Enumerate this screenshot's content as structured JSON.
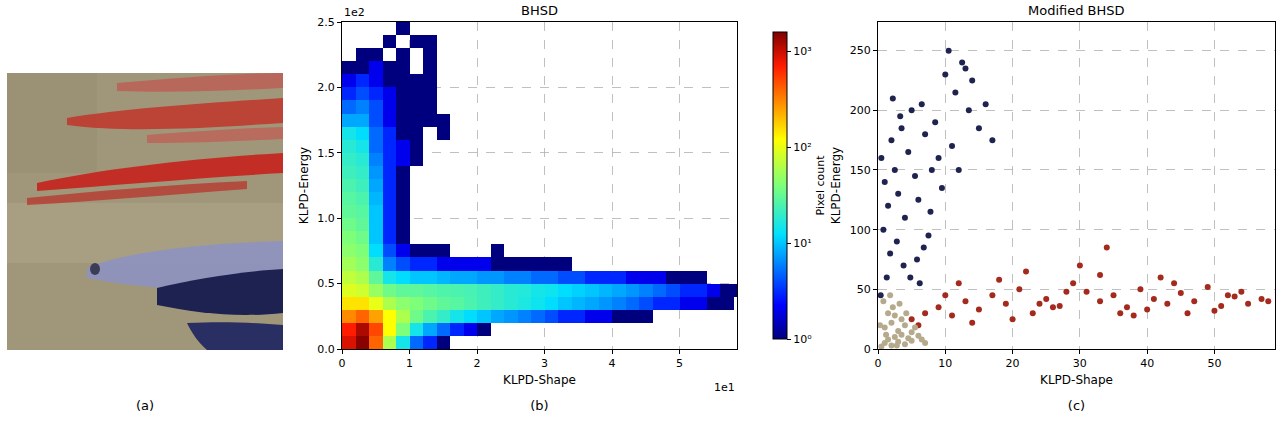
{
  "chart_data": [
    {
      "type": "image",
      "label": "(a)"
    },
    {
      "type": "heatmap",
      "label": "(b)",
      "title": "BHSD",
      "x_label": "KLPD-Shape",
      "y_label": "KLPD-Energy",
      "annotations": [
        {
          "text": "1e2",
          "axis": "y"
        },
        {
          "text": "1e1",
          "axis": "x"
        }
      ],
      "xlim": [
        0,
        5.85
      ],
      "ylim": [
        0,
        2.5
      ],
      "xticks": [
        0,
        1,
        2,
        3,
        4,
        5
      ],
      "yticks": [
        {
          "value": 0,
          "label": "0.0"
        },
        0.5,
        {
          "value": 1,
          "label": "1.0"
        },
        1.5,
        {
          "value": 2,
          "label": "2.0"
        },
        2.5
      ],
      "grid": true,
      "x_bins": [
        0,
        0.2,
        0.4,
        0.6,
        0.8,
        1.0,
        1.2,
        1.4,
        1.6,
        1.8,
        2.0,
        2.2,
        2.4,
        2.6,
        2.8,
        3.0,
        3.2,
        3.4,
        3.6,
        3.8,
        4.0,
        4.2,
        4.4,
        4.6,
        4.8,
        5.0,
        5.2,
        5.4,
        5.6,
        5.8,
        6.0
      ],
      "y_bins": [
        0,
        0.1,
        0.2,
        0.3,
        0.4,
        0.5,
        0.6,
        0.7,
        0.8,
        0.9,
        1.0,
        1.1,
        1.2,
        1.3,
        1.4,
        1.5,
        1.6,
        1.7,
        1.8,
        1.9,
        2.0,
        2.1,
        2.2,
        2.3,
        2.4,
        2.5
      ],
      "counts": [
        [
          900,
          1500,
          400,
          60,
          15,
          5,
          3,
          1,
          0,
          0,
          0,
          0,
          0,
          0,
          0,
          0,
          0,
          0,
          0,
          0,
          0,
          0,
          0,
          0,
          0,
          0,
          0,
          0,
          0,
          0
        ],
        [
          700,
          1200,
          500,
          120,
          40,
          15,
          8,
          5,
          3,
          2,
          1,
          0,
          0,
          0,
          0,
          0,
          0,
          0,
          0,
          0,
          0,
          0,
          0,
          0,
          0,
          0,
          0,
          0,
          0,
          0
        ],
        [
          300,
          400,
          250,
          120,
          60,
          35,
          25,
          20,
          15,
          12,
          10,
          8,
          7,
          6,
          5,
          4,
          3,
          3,
          2,
          2,
          1,
          1,
          1,
          0,
          0,
          0,
          0,
          0,
          0,
          0
        ],
        [
          150,
          150,
          100,
          60,
          45,
          40,
          35,
          30,
          28,
          25,
          22,
          20,
          18,
          16,
          14,
          12,
          10,
          9,
          8,
          7,
          6,
          5,
          4,
          3,
          3,
          2,
          2,
          1,
          1,
          0
        ],
        [
          90,
          80,
          50,
          35,
          30,
          30,
          28,
          26,
          25,
          24,
          22,
          20,
          18,
          17,
          15,
          14,
          12,
          11,
          10,
          9,
          8,
          7,
          6,
          5,
          4,
          3,
          3,
          2,
          1,
          1
        ],
        [
          70,
          60,
          30,
          15,
          12,
          10,
          10,
          9,
          8,
          8,
          7,
          7,
          6,
          6,
          5,
          5,
          4,
          4,
          3,
          3,
          3,
          2,
          2,
          2,
          1,
          1,
          1,
          0,
          0,
          0
        ],
        [
          55,
          45,
          18,
          6,
          4,
          3,
          3,
          2,
          2,
          2,
          2,
          1,
          1,
          1,
          1,
          1,
          1,
          0,
          0,
          0,
          0,
          0,
          0,
          0,
          0,
          0,
          0,
          0,
          0,
          0
        ],
        [
          45,
          40,
          12,
          4,
          2,
          1,
          1,
          1,
          0,
          0,
          0,
          1,
          0,
          0,
          0,
          0,
          0,
          0,
          0,
          0,
          0,
          0,
          0,
          0,
          0,
          0,
          0,
          0,
          0,
          0
        ],
        [
          40,
          35,
          10,
          3,
          1,
          0,
          0,
          0,
          0,
          0,
          0,
          0,
          0,
          0,
          0,
          0,
          0,
          0,
          0,
          0,
          0,
          0,
          0,
          0,
          0,
          0,
          0,
          0,
          0,
          0
        ],
        [
          35,
          30,
          10,
          3,
          1,
          0,
          0,
          0,
          0,
          0,
          0,
          0,
          0,
          0,
          0,
          0,
          0,
          0,
          0,
          0,
          0,
          0,
          0,
          0,
          0,
          0,
          0,
          0,
          0,
          0
        ],
        [
          30,
          28,
          10,
          3,
          1,
          0,
          0,
          0,
          0,
          0,
          0,
          0,
          0,
          0,
          0,
          0,
          0,
          0,
          0,
          0,
          0,
          0,
          0,
          0,
          0,
          0,
          0,
          0,
          0,
          0
        ],
        [
          28,
          25,
          9,
          3,
          1,
          0,
          0,
          0,
          0,
          0,
          0,
          0,
          0,
          0,
          0,
          0,
          0,
          0,
          0,
          0,
          0,
          0,
          0,
          0,
          0,
          0,
          0,
          0,
          0,
          0
        ],
        [
          25,
          22,
          8,
          3,
          1,
          0,
          0,
          0,
          0,
          0,
          0,
          0,
          0,
          0,
          0,
          0,
          0,
          0,
          0,
          0,
          0,
          0,
          0,
          0,
          0,
          0,
          0,
          0,
          0,
          0
        ],
        [
          22,
          20,
          7,
          3,
          1,
          0,
          0,
          0,
          0,
          0,
          0,
          0,
          0,
          0,
          0,
          0,
          0,
          0,
          0,
          0,
          0,
          0,
          0,
          0,
          0,
          0,
          0,
          0,
          0,
          0
        ],
        [
          20,
          18,
          6,
          3,
          2,
          1,
          0,
          0,
          0,
          0,
          0,
          0,
          0,
          0,
          0,
          0,
          0,
          0,
          0,
          0,
          0,
          0,
          0,
          0,
          0,
          0,
          0,
          0,
          0,
          0
        ],
        [
          18,
          15,
          5,
          3,
          2,
          1,
          0,
          0,
          0,
          0,
          0,
          0,
          0,
          0,
          0,
          0,
          0,
          0,
          0,
          0,
          0,
          0,
          0,
          0,
          0,
          0,
          0,
          0,
          0,
          0
        ],
        [
          15,
          12,
          5,
          3,
          1,
          1,
          0,
          1,
          0,
          0,
          0,
          0,
          0,
          0,
          0,
          0,
          0,
          0,
          0,
          0,
          0,
          0,
          0,
          0,
          0,
          0,
          0,
          0,
          0,
          0
        ],
        [
          8,
          8,
          4,
          2,
          1,
          1,
          1,
          1,
          0,
          0,
          0,
          0,
          0,
          0,
          0,
          0,
          0,
          0,
          0,
          0,
          0,
          0,
          0,
          0,
          0,
          0,
          0,
          0,
          0,
          0
        ],
        [
          5,
          6,
          4,
          2,
          1,
          1,
          1,
          0,
          0,
          0,
          0,
          0,
          0,
          0,
          0,
          0,
          0,
          0,
          0,
          0,
          0,
          0,
          0,
          0,
          0,
          0,
          0,
          0,
          0,
          0
        ],
        [
          3,
          4,
          3,
          2,
          1,
          1,
          1,
          0,
          0,
          0,
          0,
          0,
          0,
          0,
          0,
          0,
          0,
          0,
          0,
          0,
          0,
          0,
          0,
          0,
          0,
          0,
          0,
          0,
          0,
          0
        ],
        [
          2,
          3,
          2,
          1,
          1,
          1,
          1,
          0,
          0,
          0,
          0,
          0,
          0,
          0,
          0,
          0,
          0,
          0,
          0,
          0,
          0,
          0,
          0,
          0,
          0,
          0,
          0,
          0,
          0,
          0
        ],
        [
          1,
          1,
          2,
          1,
          1,
          0,
          1,
          0,
          0,
          0,
          0,
          0,
          0,
          0,
          0,
          0,
          0,
          0,
          0,
          0,
          0,
          0,
          0,
          0,
          0,
          0,
          0,
          0,
          0,
          0
        ],
        [
          0,
          1,
          1,
          0,
          1,
          0,
          1,
          0,
          0,
          0,
          0,
          0,
          0,
          0,
          0,
          0,
          0,
          0,
          0,
          0,
          0,
          0,
          0,
          0,
          0,
          0,
          0,
          0,
          0,
          0
        ],
        [
          0,
          0,
          0,
          1,
          0,
          1,
          1,
          0,
          0,
          0,
          0,
          0,
          0,
          0,
          0,
          0,
          0,
          0,
          0,
          0,
          0,
          0,
          0,
          0,
          0,
          0,
          0,
          0,
          0,
          0
        ],
        [
          0,
          0,
          0,
          0,
          1,
          0,
          0,
          0,
          0,
          0,
          0,
          0,
          0,
          0,
          0,
          0,
          0,
          0,
          0,
          0,
          0,
          0,
          0,
          0,
          0,
          0,
          0,
          0,
          0,
          0
        ]
      ],
      "colorbar": {
        "label": "Pixel count",
        "range": [
          1,
          1600
        ],
        "ticks": [
          {
            "value": 1,
            "label": "10⁰"
          },
          {
            "value": 10,
            "label": "10¹"
          },
          {
            "value": 100,
            "label": "10²"
          },
          {
            "value": 1000,
            "label": "10³"
          }
        ]
      }
    },
    {
      "type": "scatter",
      "label": "(c)",
      "title": "Modified BHSD",
      "x_label": "KLPD-Shape",
      "y_label": "KLPD-Energy",
      "xlim": [
        0,
        59
      ],
      "ylim": [
        0,
        274
      ],
      "xticks": [
        0,
        10,
        20,
        30,
        40,
        50
      ],
      "yticks": [
        0,
        50,
        100,
        150,
        200,
        250
      ],
      "grid": true,
      "marker": "circle",
      "series": [
        {
          "color": "#a52a1e",
          "x": [
            5,
            7,
            9,
            11,
            13,
            15,
            17,
            19,
            21,
            23,
            25,
            27,
            29,
            31,
            33,
            35,
            37,
            39,
            41,
            43,
            45,
            47,
            49,
            51,
            53,
            55,
            57,
            6,
            10,
            14,
            18,
            22,
            26,
            30,
            34,
            38,
            42,
            46,
            50,
            54,
            58,
            12,
            20,
            28,
            36,
            44,
            52,
            33,
            24,
            40
          ],
          "y": [
            25,
            30,
            35,
            28,
            40,
            33,
            45,
            38,
            50,
            30,
            42,
            36,
            55,
            48,
            40,
            45,
            35,
            50,
            42,
            38,
            47,
            40,
            52,
            36,
            44,
            38,
            42,
            20,
            45,
            22,
            58,
            65,
            35,
            70,
            85,
            28,
            60,
            30,
            32,
            48,
            40,
            55,
            25,
            48,
            30,
            55,
            45,
            62,
            38,
            33
          ]
        },
        {
          "color": "#1f2350",
          "x": [
            0.5,
            1,
            1.5,
            2,
            2.5,
            3,
            3.5,
            4,
            4.5,
            5,
            5.5,
            6,
            6.5,
            7,
            7.5,
            8,
            0.8,
            1.8,
            2.8,
            3.8,
            4.8,
            5.8,
            6.8,
            7.8,
            8.5,
            9,
            9.5,
            10,
            10.5,
            11,
            11.5,
            12,
            12.5,
            13,
            13.5,
            14,
            15,
            16,
            17,
            2.2,
            3.3,
            1.3,
            0.4,
            6.2
          ],
          "y": [
            160,
            140,
            120,
            175,
            150,
            130,
            185,
            110,
            165,
            200,
            145,
            125,
            205,
            180,
            95,
            150,
            100,
            80,
            90,
            70,
            60,
            75,
            85,
            115,
            190,
            160,
            135,
            230,
            250,
            170,
            215,
            150,
            240,
            235,
            200,
            225,
            185,
            205,
            175,
            210,
            195,
            60,
            45,
            55
          ]
        },
        {
          "color": "#b5aa8c",
          "x": [
            0.5,
            1,
            1.5,
            2,
            2.5,
            3,
            3.5,
            4,
            4.5,
            5,
            1,
            2,
            3,
            4,
            5,
            6,
            1.5,
            2.5,
            3.5,
            0.8,
            1.2,
            2.2,
            3.2,
            6.5,
            7,
            1.8,
            2.8,
            0.3,
            4.2,
            5.5
          ],
          "y": [
            2,
            5,
            8,
            3,
            10,
            6,
            12,
            4,
            9,
            7,
            18,
            22,
            15,
            20,
            14,
            11,
            30,
            28,
            25,
            40,
            12,
            35,
            38,
            8,
            5,
            45,
            3,
            20,
            30,
            18
          ]
        }
      ]
    }
  ]
}
